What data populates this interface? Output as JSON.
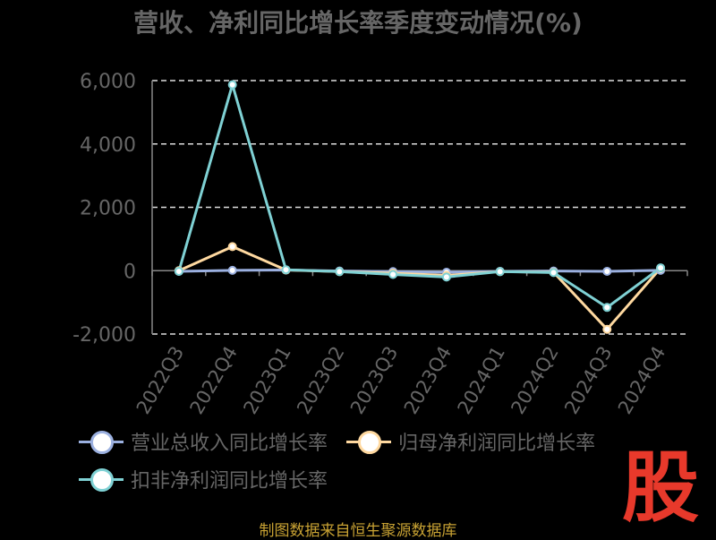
{
  "title": "营收、净利同比增长率季度变动情况(%)",
  "source": "制图数据来自恒生聚源数据库",
  "watermark": "股",
  "colors": {
    "background": "#000000",
    "grid": "#dddddd",
    "axis": "#888888",
    "text": "#666666",
    "source": "#c8a233",
    "watermark": "#e8392b"
  },
  "chart_data": {
    "type": "line",
    "title": "营收、净利同比增长率季度变动情况(%)",
    "xlabel": "",
    "ylabel": "",
    "x": [
      "2022Q3",
      "2022Q4",
      "2023Q1",
      "2023Q2",
      "2023Q3",
      "2023Q4",
      "2024Q1",
      "2024Q2",
      "2024Q3",
      "2024Q4"
    ],
    "yticks": [
      "6,000",
      "4,000",
      "2,000",
      "0",
      "-2,000"
    ],
    "ylim": [
      -2000,
      6000
    ],
    "grid": true,
    "legend_position": "bottom",
    "series": [
      {
        "name": "营业总收入同比增长率",
        "color": "#9bb0e0",
        "values": [
          -20,
          10,
          20,
          -10,
          -30,
          -50,
          -20,
          -10,
          -20,
          10
        ]
      },
      {
        "name": "归母净利润同比增长率",
        "color": "#ffd9a0",
        "values": [
          0,
          760,
          20,
          -30,
          -80,
          -150,
          -30,
          -50,
          -1850,
          80
        ]
      },
      {
        "name": "扣非净利润同比增长率",
        "color": "#7fd1d4",
        "values": [
          -20,
          5870,
          30,
          -30,
          -120,
          -200,
          -30,
          -60,
          -1160,
          90
        ]
      }
    ]
  }
}
